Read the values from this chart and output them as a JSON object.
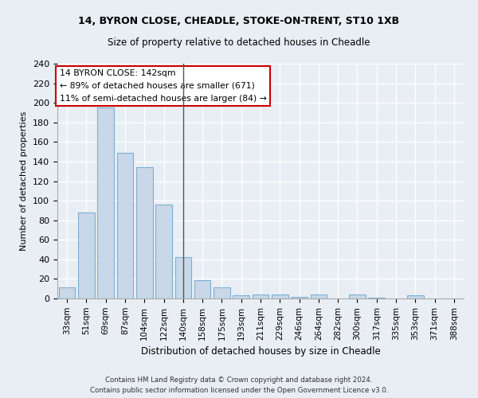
{
  "title1": "14, BYRON CLOSE, CHEADLE, STOKE-ON-TRENT, ST10 1XB",
  "title2": "Size of property relative to detached houses in Cheadle",
  "xlabel": "Distribution of detached houses by size in Cheadle",
  "ylabel": "Number of detached properties",
  "categories": [
    "33sqm",
    "51sqm",
    "69sqm",
    "87sqm",
    "104sqm",
    "122sqm",
    "140sqm",
    "158sqm",
    "175sqm",
    "193sqm",
    "211sqm",
    "229sqm",
    "246sqm",
    "264sqm",
    "282sqm",
    "300sqm",
    "317sqm",
    "335sqm",
    "353sqm",
    "371sqm",
    "388sqm"
  ],
  "values": [
    11,
    88,
    195,
    149,
    134,
    96,
    42,
    19,
    11,
    3,
    4,
    4,
    2,
    4,
    0,
    4,
    1,
    0,
    3,
    0,
    0
  ],
  "bar_color": "#c8d8e8",
  "bar_edge_color": "#7bafd4",
  "annotation_line1": "14 BYRON CLOSE: 142sqm",
  "annotation_line2": "← 89% of detached houses are smaller (671)",
  "annotation_line3": "11% of semi-detached houses are larger (84) →",
  "vline_color": "#555555",
  "annotation_box_edge": "#cc0000",
  "ylim": [
    0,
    240
  ],
  "yticks": [
    0,
    20,
    40,
    60,
    80,
    100,
    120,
    140,
    160,
    180,
    200,
    220,
    240
  ],
  "footer1": "Contains HM Land Registry data © Crown copyright and database right 2024.",
  "footer2": "Contains public sector information licensed under the Open Government Licence v3.0.",
  "bg_color": "#e8eef4",
  "plot_bg_color": "#e8eef4"
}
